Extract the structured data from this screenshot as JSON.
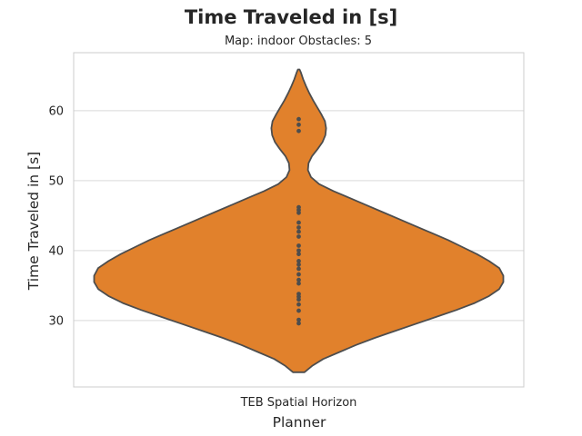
{
  "chart_data": {
    "type": "violin",
    "title": "Time Traveled in [s]",
    "subtitle": "Map: indoor Obstacles: 5",
    "xlabel": "Planner",
    "ylabel": "Time Traveled in [s]",
    "categories": [
      "TEB Spatial Horizon"
    ],
    "ylim": [
      20.5,
      68.3
    ],
    "yticks": [
      30,
      40,
      50,
      60
    ],
    "grid": true,
    "colors": {
      "fill": "#e1812c",
      "edge": "#4d4d4d",
      "grid": "#d9d9d9",
      "frame": "#cccccc"
    },
    "series": [
      {
        "category": "TEB Spatial Horizon",
        "points": [
          29.6,
          30.1,
          31.4,
          32.3,
          33.0,
          33.4,
          33.8,
          35.3,
          35.8,
          36.6,
          37.4,
          38.0,
          38.5,
          39.5,
          40.0,
          40.7,
          42.0,
          42.7,
          43.3,
          44.0,
          45.4,
          45.8,
          46.2,
          57.1,
          58.0,
          58.8
        ],
        "density_profile": [
          [
            22.6,
            0.028
          ],
          [
            23.5,
            0.065
          ],
          [
            24.5,
            0.12
          ],
          [
            25.5,
            0.2
          ],
          [
            26.5,
            0.28
          ],
          [
            27.5,
            0.37
          ],
          [
            28.5,
            0.47
          ],
          [
            29.5,
            0.57
          ],
          [
            30.5,
            0.67
          ],
          [
            31.5,
            0.77
          ],
          [
            32.5,
            0.86
          ],
          [
            33.5,
            0.93
          ],
          [
            34.5,
            0.98
          ],
          [
            35.5,
            1.0
          ],
          [
            36.4,
            1.0
          ],
          [
            37.5,
            0.98
          ],
          [
            38.5,
            0.93
          ],
          [
            39.5,
            0.87
          ],
          [
            40.5,
            0.8
          ],
          [
            41.5,
            0.73
          ],
          [
            42.5,
            0.65
          ],
          [
            43.5,
            0.57
          ],
          [
            44.5,
            0.49
          ],
          [
            45.5,
            0.41
          ],
          [
            46.5,
            0.33
          ],
          [
            47.5,
            0.25
          ],
          [
            48.5,
            0.17
          ],
          [
            49.5,
            0.1
          ],
          [
            50.5,
            0.06
          ],
          [
            51.5,
            0.045
          ],
          [
            52.5,
            0.048
          ],
          [
            53.5,
            0.065
          ],
          [
            54.5,
            0.092
          ],
          [
            55.5,
            0.116
          ],
          [
            56.5,
            0.13
          ],
          [
            57.5,
            0.134
          ],
          [
            58.5,
            0.128
          ],
          [
            59.5,
            0.11
          ],
          [
            60.5,
            0.09
          ],
          [
            61.5,
            0.07
          ],
          [
            62.5,
            0.052
          ],
          [
            63.5,
            0.036
          ],
          [
            64.5,
            0.022
          ],
          [
            65.5,
            0.01
          ],
          [
            65.9,
            0.004
          ]
        ]
      }
    ]
  }
}
